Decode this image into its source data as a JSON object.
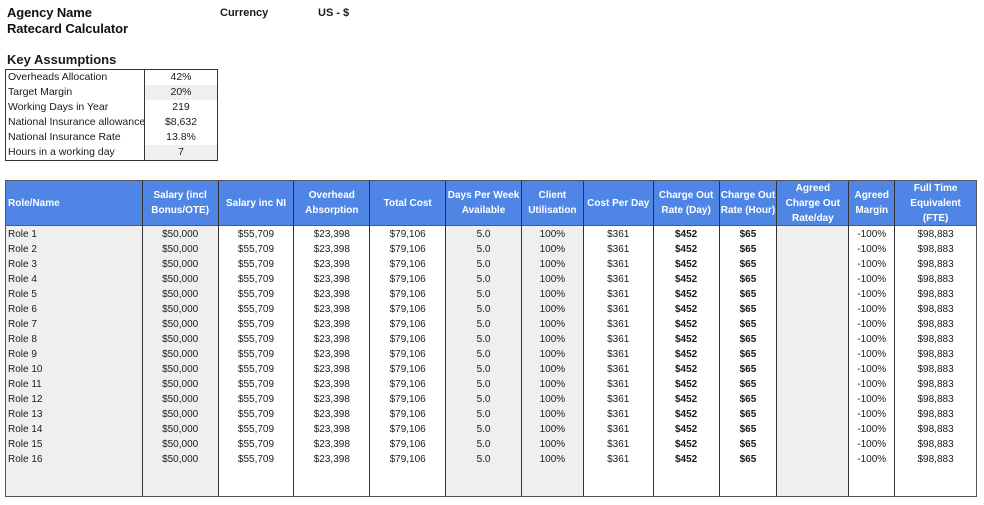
{
  "header": {
    "agency_name": "Agency Name",
    "subtitle": "Ratecard Calculator",
    "currency_label": "Currency",
    "currency_value": "US - $"
  },
  "key_assumptions": {
    "title": "Key Assumptions",
    "rows": [
      {
        "label": "Overheads Allocation",
        "value": "42%",
        "shaded": false
      },
      {
        "label": "Target Margin",
        "value": "20%",
        "shaded": true
      },
      {
        "label": "Working Days in Year",
        "value": "219",
        "shaded": false
      },
      {
        "label": "National Insurance allowance",
        "value": "$8,632",
        "shaded": false
      },
      {
        "label": "National Insurance Rate",
        "value": "13.8%",
        "shaded": false
      },
      {
        "label": "Hours in a working day",
        "value": "7",
        "shaded": true
      }
    ]
  },
  "table": {
    "columns": [
      {
        "key": "role",
        "label": "Role/Name",
        "width": 137,
        "shaded": true,
        "align": "left"
      },
      {
        "key": "salary",
        "label": "Salary (incl Bonus/OTE)",
        "width": 76,
        "shaded": true
      },
      {
        "key": "salary_ni",
        "label": "Salary inc NI",
        "width": 76,
        "shaded": false
      },
      {
        "key": "overhead",
        "label": "Overhead Absorption",
        "width": 76,
        "shaded": false
      },
      {
        "key": "total_cost",
        "label": "Total Cost",
        "width": 76,
        "shaded": false
      },
      {
        "key": "days_per_week",
        "label": "Days Per Week Available",
        "width": 76,
        "shaded": true
      },
      {
        "key": "utilisation",
        "label": "Client Utilisation",
        "width": 62,
        "shaded": true
      },
      {
        "key": "cost_per_day",
        "label": "Cost Per Day",
        "width": 70,
        "shaded": false
      },
      {
        "key": "charge_day",
        "label": "Charge Out Rate (Day)",
        "width": 66,
        "shaded": false,
        "bold": true
      },
      {
        "key": "charge_hour",
        "label": "Charge Out Rate (Hour)",
        "width": 58,
        "shaded": false,
        "bold": true
      },
      {
        "key": "agreed_rate",
        "label": "Agreed Charge Out Rate/day",
        "width": 72,
        "shaded": true
      },
      {
        "key": "agreed_margin",
        "label": "Agreed Margin",
        "width": 46,
        "shaded": false
      },
      {
        "key": "fte",
        "label": "Full Time Equivalent (FTE)",
        "width": 81,
        "shaded": false
      }
    ],
    "rows": [
      {
        "role": "Role 1",
        "salary": "$50,000",
        "salary_ni": "$55,709",
        "overhead": "$23,398",
        "total_cost": "$79,106",
        "days_per_week": "5.0",
        "utilisation": "100%",
        "cost_per_day": "$361",
        "charge_day": "$452",
        "charge_hour": "$65",
        "agreed_rate": "",
        "agreed_margin": "-100%",
        "fte": "$98,883"
      },
      {
        "role": "Role 2",
        "salary": "$50,000",
        "salary_ni": "$55,709",
        "overhead": "$23,398",
        "total_cost": "$79,106",
        "days_per_week": "5.0",
        "utilisation": "100%",
        "cost_per_day": "$361",
        "charge_day": "$452",
        "charge_hour": "$65",
        "agreed_rate": "",
        "agreed_margin": "-100%",
        "fte": "$98,883"
      },
      {
        "role": "Role 3",
        "salary": "$50,000",
        "salary_ni": "$55,709",
        "overhead": "$23,398",
        "total_cost": "$79,106",
        "days_per_week": "5.0",
        "utilisation": "100%",
        "cost_per_day": "$361",
        "charge_day": "$452",
        "charge_hour": "$65",
        "agreed_rate": "",
        "agreed_margin": "-100%",
        "fte": "$98,883"
      },
      {
        "role": "Role 4",
        "salary": "$50,000",
        "salary_ni": "$55,709",
        "overhead": "$23,398",
        "total_cost": "$79,106",
        "days_per_week": "5.0",
        "utilisation": "100%",
        "cost_per_day": "$361",
        "charge_day": "$452",
        "charge_hour": "$65",
        "agreed_rate": "",
        "agreed_margin": "-100%",
        "fte": "$98,883"
      },
      {
        "role": "Role 5",
        "salary": "$50,000",
        "salary_ni": "$55,709",
        "overhead": "$23,398",
        "total_cost": "$79,106",
        "days_per_week": "5.0",
        "utilisation": "100%",
        "cost_per_day": "$361",
        "charge_day": "$452",
        "charge_hour": "$65",
        "agreed_rate": "",
        "agreed_margin": "-100%",
        "fte": "$98,883"
      },
      {
        "role": "Role 6",
        "salary": "$50,000",
        "salary_ni": "$55,709",
        "overhead": "$23,398",
        "total_cost": "$79,106",
        "days_per_week": "5.0",
        "utilisation": "100%",
        "cost_per_day": "$361",
        "charge_day": "$452",
        "charge_hour": "$65",
        "agreed_rate": "",
        "agreed_margin": "-100%",
        "fte": "$98,883"
      },
      {
        "role": "Role 7",
        "salary": "$50,000",
        "salary_ni": "$55,709",
        "overhead": "$23,398",
        "total_cost": "$79,106",
        "days_per_week": "5.0",
        "utilisation": "100%",
        "cost_per_day": "$361",
        "charge_day": "$452",
        "charge_hour": "$65",
        "agreed_rate": "",
        "agreed_margin": "-100%",
        "fte": "$98,883"
      },
      {
        "role": "Role 8",
        "salary": "$50,000",
        "salary_ni": "$55,709",
        "overhead": "$23,398",
        "total_cost": "$79,106",
        "days_per_week": "5.0",
        "utilisation": "100%",
        "cost_per_day": "$361",
        "charge_day": "$452",
        "charge_hour": "$65",
        "agreed_rate": "",
        "agreed_margin": "-100%",
        "fte": "$98,883"
      },
      {
        "role": "Role 9",
        "salary": "$50,000",
        "salary_ni": "$55,709",
        "overhead": "$23,398",
        "total_cost": "$79,106",
        "days_per_week": "5.0",
        "utilisation": "100%",
        "cost_per_day": "$361",
        "charge_day": "$452",
        "charge_hour": "$65",
        "agreed_rate": "",
        "agreed_margin": "-100%",
        "fte": "$98,883"
      },
      {
        "role": "Role 10",
        "salary": "$50,000",
        "salary_ni": "$55,709",
        "overhead": "$23,398",
        "total_cost": "$79,106",
        "days_per_week": "5.0",
        "utilisation": "100%",
        "cost_per_day": "$361",
        "charge_day": "$452",
        "charge_hour": "$65",
        "agreed_rate": "",
        "agreed_margin": "-100%",
        "fte": "$98,883"
      },
      {
        "role": "Role 11",
        "salary": "$50,000",
        "salary_ni": "$55,709",
        "overhead": "$23,398",
        "total_cost": "$79,106",
        "days_per_week": "5.0",
        "utilisation": "100%",
        "cost_per_day": "$361",
        "charge_day": "$452",
        "charge_hour": "$65",
        "agreed_rate": "",
        "agreed_margin": "-100%",
        "fte": "$98,883"
      },
      {
        "role": "Role 12",
        "salary": "$50,000",
        "salary_ni": "$55,709",
        "overhead": "$23,398",
        "total_cost": "$79,106",
        "days_per_week": "5.0",
        "utilisation": "100%",
        "cost_per_day": "$361",
        "charge_day": "$452",
        "charge_hour": "$65",
        "agreed_rate": "",
        "agreed_margin": "-100%",
        "fte": "$98,883"
      },
      {
        "role": "Role 13",
        "salary": "$50,000",
        "salary_ni": "$55,709",
        "overhead": "$23,398",
        "total_cost": "$79,106",
        "days_per_week": "5.0",
        "utilisation": "100%",
        "cost_per_day": "$361",
        "charge_day": "$452",
        "charge_hour": "$65",
        "agreed_rate": "",
        "agreed_margin": "-100%",
        "fte": "$98,883"
      },
      {
        "role": "Role 14",
        "salary": "$50,000",
        "salary_ni": "$55,709",
        "overhead": "$23,398",
        "total_cost": "$79,106",
        "days_per_week": "5.0",
        "utilisation": "100%",
        "cost_per_day": "$361",
        "charge_day": "$452",
        "charge_hour": "$65",
        "agreed_rate": "",
        "agreed_margin": "-100%",
        "fte": "$98,883"
      },
      {
        "role": "Role 15",
        "salary": "$50,000",
        "salary_ni": "$55,709",
        "overhead": "$23,398",
        "total_cost": "$79,106",
        "days_per_week": "5.0",
        "utilisation": "100%",
        "cost_per_day": "$361",
        "charge_day": "$452",
        "charge_hour": "$65",
        "agreed_rate": "",
        "agreed_margin": "-100%",
        "fte": "$98,883"
      },
      {
        "role": "Role 16",
        "salary": "$50,000",
        "salary_ni": "$55,709",
        "overhead": "$23,398",
        "total_cost": "$79,106",
        "days_per_week": "5.0",
        "utilisation": "100%",
        "cost_per_day": "$361",
        "charge_day": "$452",
        "charge_hour": "$65",
        "agreed_rate": "",
        "agreed_margin": "-100%",
        "fte": "$98,883"
      }
    ]
  },
  "colors": {
    "header_bg": "#4f86e6",
    "header_text": "#ffffff",
    "input_shade": "#efefef"
  }
}
